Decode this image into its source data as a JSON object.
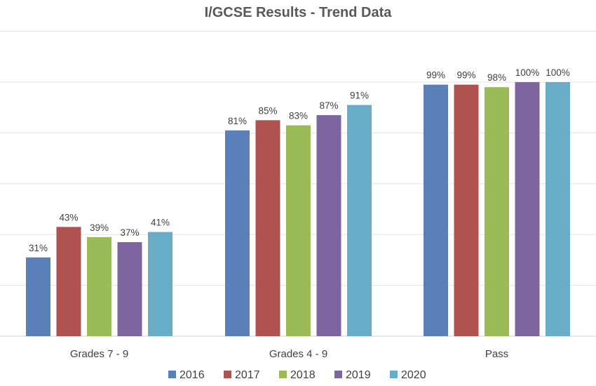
{
  "chart_data": {
    "type": "bar",
    "title": "I/GCSE Results - Trend Data",
    "categories": [
      "Grades 7 - 9",
      "Grades 4 - 9",
      "Pass"
    ],
    "ylim": [
      0,
      100
    ],
    "grid": true,
    "legend": "bottom",
    "series": [
      {
        "name": "2016",
        "color": "#5B7FB9",
        "values": [
          31,
          81,
          99
        ],
        "labels": [
          "31%",
          "81%",
          "99%"
        ]
      },
      {
        "name": "2017",
        "color": "#B0524F",
        "values": [
          43,
          85,
          99
        ],
        "labels": [
          "43%",
          "85%",
          "99%"
        ]
      },
      {
        "name": "2018",
        "color": "#9BBB59",
        "values": [
          39,
          83,
          98
        ],
        "labels": [
          "39%",
          "83%",
          "98%"
        ]
      },
      {
        "name": "2019",
        "color": "#7D65A0",
        "values": [
          37,
          87,
          100
        ],
        "labels": [
          "37%",
          "87%",
          "100%"
        ]
      },
      {
        "name": "2020",
        "color": "#68ADC5",
        "values": [
          41,
          91,
          100
        ],
        "labels": [
          "41%",
          "91%",
          "100%"
        ]
      }
    ]
  }
}
